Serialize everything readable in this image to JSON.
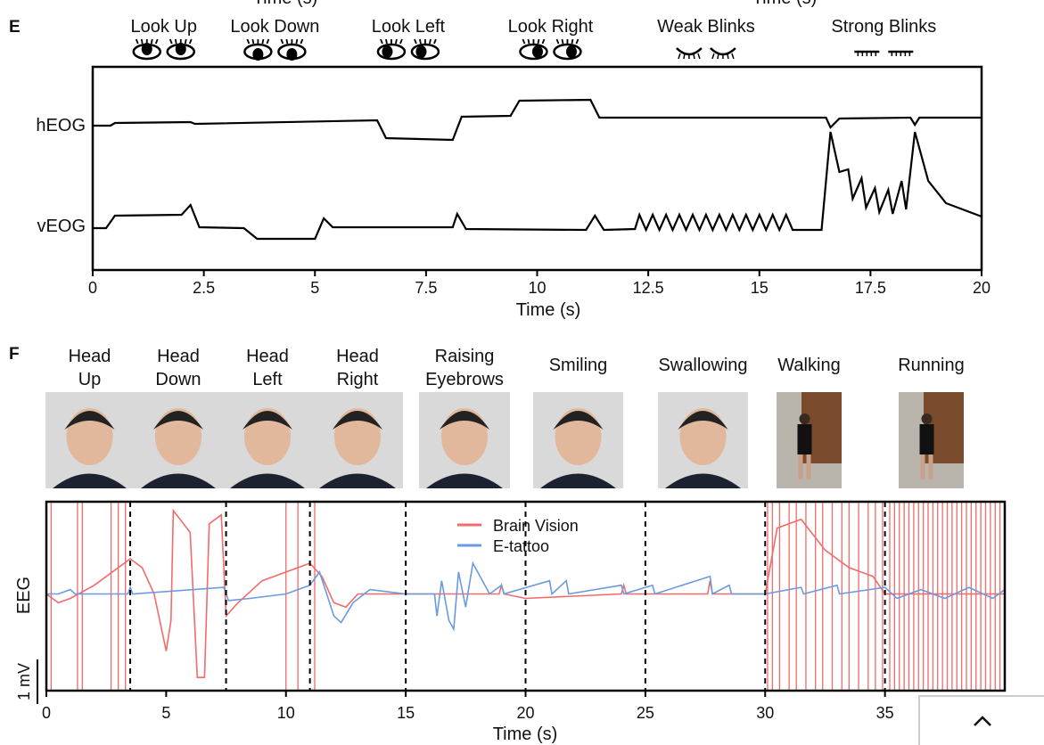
{
  "top_cut_labels": [
    "Time (s)",
    "Time (s)"
  ],
  "panel_e": {
    "letter": "E",
    "conditions": [
      {
        "label": "Look Up",
        "icon": "eye-looking-up-icon",
        "t": 1.6
      },
      {
        "label": "Look Down",
        "icon": "eye-looking-down-icon",
        "t": 4.1
      },
      {
        "label": "Look Left",
        "icon": "eye-looking-left-icon",
        "t": 7.1
      },
      {
        "label": "Look Right",
        "icon": "eye-looking-right-icon",
        "t": 10.3
      },
      {
        "label": "Weak Blinks",
        "icon": "eye-closed-icon",
        "t": 13.8
      },
      {
        "label": "Strong Blinks",
        "icon": "eye-squeezed-icon",
        "t": 17.8
      }
    ]
  },
  "panel_f": {
    "letter": "F",
    "conditions": [
      {
        "label1": "Head",
        "label2": "Up"
      },
      {
        "label1": "Head",
        "label2": "Down"
      },
      {
        "label1": "Head",
        "label2": "Left"
      },
      {
        "label1": "Head",
        "label2": "Right"
      },
      {
        "label1": "Raising",
        "label2": "Eyebrows"
      },
      {
        "label1": "Smiling",
        "label2": ""
      },
      {
        "label1": "Swallowing",
        "label2": ""
      },
      {
        "label1": "Walking",
        "label2": ""
      },
      {
        "label1": "Running",
        "label2": ""
      }
    ],
    "scale_bar_label": "1 mV"
  },
  "chart_data": [
    {
      "type": "line",
      "xlabel": "Time (s)",
      "xlim": [
        0,
        20
      ],
      "xticks": [
        "0",
        "2.5",
        "5",
        "7.5",
        "10",
        "12.5",
        "15",
        "17.5",
        "20"
      ],
      "grid": false,
      "series": [
        {
          "name": "hEOG",
          "color": "#000000",
          "points": [
            [
              0,
              -0.1
            ],
            [
              0.4,
              -0.1
            ],
            [
              0.5,
              0.2
            ],
            [
              2.2,
              0.3
            ],
            [
              2.3,
              0.1
            ],
            [
              6.4,
              0.5
            ],
            [
              6.6,
              -1.5
            ],
            [
              8.1,
              -1.7
            ],
            [
              8.3,
              0.9
            ],
            [
              9.4,
              1.0
            ],
            [
              9.6,
              2.7
            ],
            [
              11.2,
              2.8
            ],
            [
              11.4,
              0.8
            ],
            [
              16.5,
              0.8
            ],
            [
              16.6,
              -0.3
            ],
            [
              16.8,
              0.7
            ],
            [
              18.4,
              0.8
            ],
            [
              18.5,
              0
            ],
            [
              18.6,
              0.8
            ],
            [
              20,
              0.8
            ]
          ]
        },
        {
          "name": "vEOG",
          "color": "#000000",
          "points": [
            [
              0,
              -0.3
            ],
            [
              0.3,
              -0.3
            ],
            [
              0.5,
              1.1
            ],
            [
              2.0,
              1.2
            ],
            [
              2.2,
              2.3
            ],
            [
              2.4,
              -0.2
            ],
            [
              3.4,
              -0.3
            ],
            [
              3.7,
              -1.5
            ],
            [
              5.0,
              -1.5
            ],
            [
              5.2,
              0.8
            ],
            [
              5.4,
              -0.2
            ],
            [
              8.1,
              -0.2
            ],
            [
              8.2,
              1.3
            ],
            [
              8.4,
              -0.4
            ],
            [
              11.1,
              -0.5
            ],
            [
              11.3,
              1.1
            ],
            [
              11.5,
              -0.5
            ],
            [
              12.2,
              -0.4
            ],
            [
              12.3,
              1.2
            ],
            [
              12.45,
              -0.5
            ],
            [
              12.6,
              1.2
            ],
            [
              12.75,
              -0.5
            ],
            [
              12.9,
              1.2
            ],
            [
              13.05,
              -0.5
            ],
            [
              13.2,
              1.2
            ],
            [
              13.35,
              -0.5
            ],
            [
              13.5,
              1.2
            ],
            [
              13.65,
              -0.5
            ],
            [
              13.8,
              1.2
            ],
            [
              13.95,
              -0.5
            ],
            [
              14.1,
              1.2
            ],
            [
              14.25,
              -0.5
            ],
            [
              14.4,
              1.2
            ],
            [
              14.55,
              -0.5
            ],
            [
              14.7,
              1.2
            ],
            [
              14.85,
              -0.5
            ],
            [
              15.0,
              1.2
            ],
            [
              15.15,
              -0.5
            ],
            [
              15.3,
              1.2
            ],
            [
              15.45,
              -0.5
            ],
            [
              15.6,
              1.2
            ],
            [
              15.75,
              -0.5
            ],
            [
              16.4,
              -0.5
            ],
            [
              16.6,
              10.5
            ],
            [
              16.8,
              6
            ],
            [
              17.0,
              6.3
            ],
            [
              17.1,
              3
            ],
            [
              17.3,
              5.3
            ],
            [
              17.4,
              2
            ],
            [
              17.6,
              4.2
            ],
            [
              17.7,
              1.5
            ],
            [
              17.9,
              4
            ],
            [
              18.0,
              1.3
            ],
            [
              18.2,
              5
            ],
            [
              18.3,
              1.8
            ],
            [
              18.5,
              10.5
            ],
            [
              18.8,
              5
            ],
            [
              19.2,
              2.5
            ],
            [
              20,
              1
            ]
          ]
        }
      ]
    },
    {
      "type": "line",
      "ylabel": "EEG",
      "xlabel": "Time (s)",
      "xlim": [
        0,
        40
      ],
      "ylim": [
        -2.2,
        2.1
      ],
      "xticks": [
        "0",
        "5",
        "10",
        "15",
        "20",
        "25",
        "30",
        "35"
      ],
      "boundaries": [
        3.5,
        7.5,
        11,
        15,
        20,
        25,
        30,
        35
      ],
      "legend": "top-center",
      "grid": false,
      "series": [
        {
          "name": "Brain Vision",
          "color": "#f26b6b",
          "points": [
            [
              0,
              0
            ],
            [
              0.5,
              -0.2
            ],
            [
              1,
              -0.1
            ],
            [
              2,
              0.2
            ],
            [
              3,
              0.6
            ],
            [
              3.5,
              0.8
            ],
            [
              4,
              0.6
            ],
            [
              4.5,
              0
            ],
            [
              5,
              -1.3
            ],
            [
              5.2,
              -0.6
            ],
            [
              5.3,
              1.9
            ],
            [
              6,
              1.4
            ],
            [
              6.3,
              -1.9
            ],
            [
              6.6,
              -1.9
            ],
            [
              6.8,
              1.6
            ],
            [
              7.3,
              1.8
            ],
            [
              7.5,
              -0.5
            ],
            [
              8,
              -0.2
            ],
            [
              9,
              0.3
            ],
            [
              10,
              0.5
            ],
            [
              11,
              0.7
            ],
            [
              11.5,
              0.4
            ],
            [
              12,
              -0.2
            ],
            [
              12.5,
              -0.3
            ],
            [
              13,
              0
            ],
            [
              15,
              0
            ],
            [
              18.9,
              0
            ],
            [
              19,
              0.2
            ],
            [
              19.1,
              0
            ],
            [
              20,
              -0.1
            ],
            [
              24,
              0
            ],
            [
              24.1,
              0.2
            ],
            [
              24.2,
              0
            ],
            [
              27.6,
              0
            ],
            [
              27.7,
              0.3
            ],
            [
              27.8,
              0
            ],
            [
              30,
              0
            ],
            [
              30.5,
              1.5
            ],
            [
              31.5,
              1.7
            ],
            [
              32.5,
              1.0
            ],
            [
              33.5,
              0.6
            ],
            [
              34.5,
              0.4
            ],
            [
              35,
              0
            ],
            [
              40,
              0
            ]
          ],
          "clipped_spike_times": [
            0.2,
            1.3,
            1.5,
            2.7,
            3.0,
            3.3,
            10.0,
            10.5,
            11.2,
            30.1,
            30.3,
            30.6,
            31.0,
            31.3,
            31.7,
            32.1,
            32.4,
            32.8,
            33.2,
            33.5,
            33.9,
            34.3,
            34.6,
            34.9,
            35.2,
            35.4,
            35.6,
            35.8,
            36.0,
            36.2,
            36.4,
            36.6,
            36.8,
            37.0,
            37.2,
            37.4,
            37.6,
            37.8,
            38.0,
            38.2,
            38.4,
            38.6,
            38.8,
            39.0,
            39.2,
            39.4,
            39.6,
            39.8
          ]
        },
        {
          "name": "E-tattoo",
          "color": "#6a9be0",
          "points": [
            [
              0,
              0
            ],
            [
              0.5,
              0
            ],
            [
              1,
              0.1
            ],
            [
              1.2,
              0
            ],
            [
              3.4,
              0
            ],
            [
              3.5,
              0.15
            ],
            [
              3.6,
              0
            ],
            [
              7.4,
              0.15
            ],
            [
              7.6,
              -0.15
            ],
            [
              8.5,
              -0.1
            ],
            [
              10,
              0
            ],
            [
              11,
              0.2
            ],
            [
              11.4,
              0.5
            ],
            [
              12,
              -0.5
            ],
            [
              12.3,
              -0.65
            ],
            [
              12.8,
              -0.2
            ],
            [
              13.5,
              0.1
            ],
            [
              15,
              0
            ],
            [
              16.2,
              0
            ],
            [
              16.3,
              -0.5
            ],
            [
              16.5,
              0.3
            ],
            [
              16.8,
              -0.6
            ],
            [
              17.0,
              -0.8
            ],
            [
              17.2,
              0.5
            ],
            [
              17.5,
              -0.3
            ],
            [
              17.8,
              0.7
            ],
            [
              18.5,
              0
            ],
            [
              19,
              0.2
            ],
            [
              19.1,
              0
            ],
            [
              21,
              0.3
            ],
            [
              21.1,
              0
            ],
            [
              21.7,
              0.3
            ],
            [
              21.8,
              0
            ],
            [
              24,
              0.2
            ],
            [
              24.1,
              0
            ],
            [
              25.3,
              0.2
            ],
            [
              25.4,
              0
            ],
            [
              27.7,
              0.4
            ],
            [
              27.8,
              0
            ],
            [
              28.5,
              0.2
            ],
            [
              28.6,
              0
            ],
            [
              30,
              0
            ],
            [
              31.5,
              0.15
            ],
            [
              31.6,
              0
            ],
            [
              33,
              0.2
            ],
            [
              33.1,
              0
            ],
            [
              35,
              0.15
            ],
            [
              35.5,
              -0.1
            ],
            [
              36.5,
              0.1
            ],
            [
              37.5,
              -0.1
            ],
            [
              38.5,
              0.15
            ],
            [
              39.5,
              -0.1
            ],
            [
              40,
              0.1
            ]
          ]
        }
      ]
    }
  ]
}
